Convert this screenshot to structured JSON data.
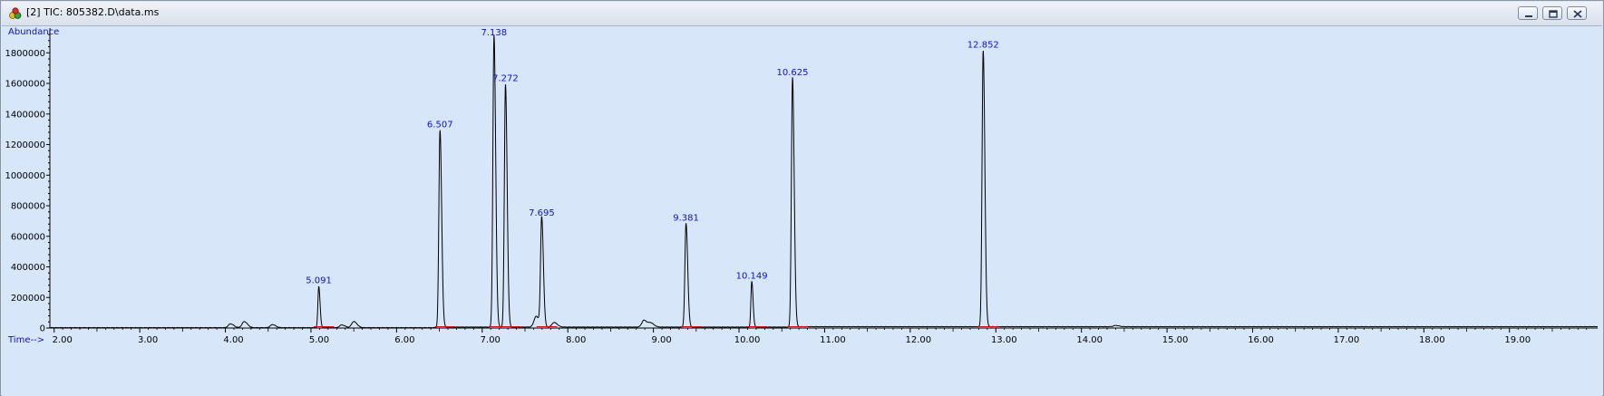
{
  "window": {
    "title": "[2] TIC: 805382.D\\data.ms",
    "buttons": [
      "minimize",
      "restore",
      "close"
    ]
  },
  "chart_data": {
    "type": "line",
    "ylabel": "Abundance",
    "xlabel": "Time-->",
    "xlim": [
      1.95,
      20.03
    ],
    "ylim": [
      0,
      1950000
    ],
    "x_ticks": [
      "2.00",
      "3.00",
      "4.00",
      "5.00",
      "6.00",
      "7.00",
      "8.00",
      "9.00",
      "10.00",
      "11.00",
      "12.00",
      "13.00",
      "14.00",
      "15.00",
      "16.00",
      "17.00",
      "18.00",
      "19.00"
    ],
    "y_ticks": [
      "0",
      "200000",
      "400000",
      "600000",
      "800000",
      "1000000",
      "1200000",
      "1400000",
      "1600000",
      "1800000"
    ],
    "peaks": [
      {
        "rt": 4.06,
        "abundance": 25000
      },
      {
        "rt": 4.22,
        "abundance": 40000
      },
      {
        "rt": 4.55,
        "abundance": 20000
      },
      {
        "rt": 5.091,
        "abundance": 270000,
        "label": "5.091"
      },
      {
        "rt": 5.36,
        "abundance": 18000
      },
      {
        "rt": 5.5,
        "abundance": 40000
      },
      {
        "rt": 6.507,
        "abundance": 1290000,
        "label": "6.507"
      },
      {
        "rt": 7.138,
        "abundance": 1910000,
        "label": "7.138"
      },
      {
        "rt": 7.272,
        "abundance": 1590000,
        "label": "7.272"
      },
      {
        "rt": 7.63,
        "abundance": 70000
      },
      {
        "rt": 7.695,
        "abundance": 710000,
        "label": "7.695"
      },
      {
        "rt": 7.84,
        "abundance": 30000
      },
      {
        "rt": 8.89,
        "abundance": 45000
      },
      {
        "rt": 8.97,
        "abundance": 25000
      },
      {
        "rt": 9.381,
        "abundance": 680000,
        "label": "9.381"
      },
      {
        "rt": 10.149,
        "abundance": 300000,
        "label": "10.149"
      },
      {
        "rt": 10.625,
        "abundance": 1630000,
        "label": "10.625"
      },
      {
        "rt": 12.852,
        "abundance": 1810000,
        "label": "12.852"
      },
      {
        "rt": 14.4,
        "abundance": 8000
      }
    ],
    "grid": false,
    "colors": {
      "plot_background": "#d8e6fa",
      "trace": "#000000",
      "baseline": "#d01010",
      "peak_label": "#1010c8",
      "axis": "#000000"
    }
  }
}
